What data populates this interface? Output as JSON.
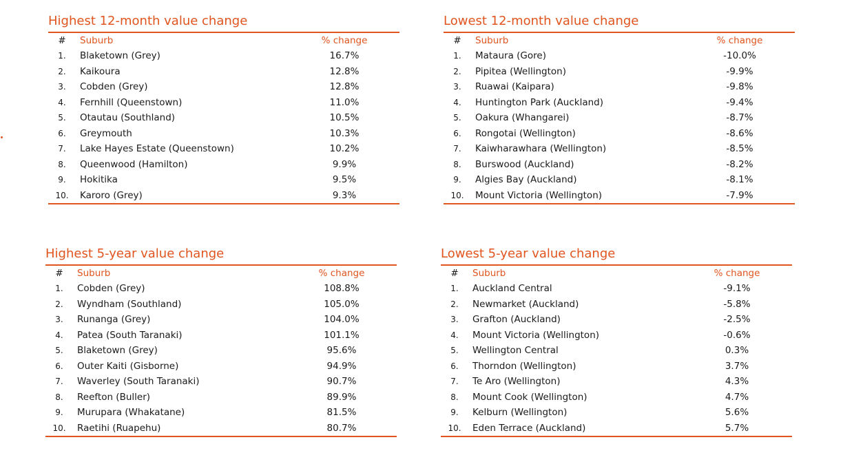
{
  "tables": [
    {
      "title": "Highest 12-month value change",
      "headers": {
        "rank": "#",
        "suburb": "Suburb",
        "change": "% change"
      },
      "rows": [
        {
          "rank": "1.",
          "suburb": "Blaketown (Grey)",
          "change": "16.7%"
        },
        {
          "rank": "2.",
          "suburb": "Kaikoura",
          "change": "12.8%"
        },
        {
          "rank": "3.",
          "suburb": "Cobden (Grey)",
          "change": "12.8%"
        },
        {
          "rank": "4.",
          "suburb": "Fernhill (Queenstown)",
          "change": "11.0%"
        },
        {
          "rank": "5.",
          "suburb": "Otautau (Southland)",
          "change": "10.5%"
        },
        {
          "rank": "6.",
          "suburb": "Greymouth",
          "change": "10.3%"
        },
        {
          "rank": "7.",
          "suburb": "Lake Hayes Estate (Queenstown)",
          "change": "10.2%"
        },
        {
          "rank": "8.",
          "suburb": "Queenwood (Hamilton)",
          "change": "9.9%"
        },
        {
          "rank": "9.",
          "suburb": "Hokitika",
          "change": "9.5%"
        },
        {
          "rank": "10.",
          "suburb": "Karoro (Grey)",
          "change": "9.3%"
        }
      ]
    },
    {
      "title": "Lowest 12-month value change",
      "headers": {
        "rank": "#",
        "suburb": "Suburb",
        "change": "% change"
      },
      "rows": [
        {
          "rank": "1.",
          "suburb": "Mataura (Gore)",
          "change": "-10.0%"
        },
        {
          "rank": "2.",
          "suburb": "Pipitea (Wellington)",
          "change": "-9.9%"
        },
        {
          "rank": "3.",
          "suburb": "Ruawai (Kaipara)",
          "change": "-9.8%"
        },
        {
          "rank": "4.",
          "suburb": "Huntington Park (Auckland)",
          "change": "-9.4%"
        },
        {
          "rank": "5.",
          "suburb": "Oakura (Whangarei)",
          "change": "-8.7%"
        },
        {
          "rank": "6.",
          "suburb": "Rongotai (Wellington)",
          "change": "-8.6%"
        },
        {
          "rank": "7.",
          "suburb": "Kaiwharawhara (Wellington)",
          "change": "-8.5%"
        },
        {
          "rank": "8.",
          "suburb": "Burswood (Auckland)",
          "change": "-8.2%"
        },
        {
          "rank": "9.",
          "suburb": "Algies Bay (Auckland)",
          "change": "-8.1%"
        },
        {
          "rank": "10.",
          "suburb": "Mount Victoria (Wellington)",
          "change": "-7.9%"
        }
      ]
    },
    {
      "title": "Highest 5-year value change",
      "headers": {
        "rank": "#",
        "suburb": "Suburb",
        "change": "% change"
      },
      "rows": [
        {
          "rank": "1.",
          "suburb": "Cobden (Grey)",
          "change": "108.8%"
        },
        {
          "rank": "2.",
          "suburb": "Wyndham (Southland)",
          "change": "105.0%"
        },
        {
          "rank": "3.",
          "suburb": "Runanga (Grey)",
          "change": "104.0%"
        },
        {
          "rank": "4.",
          "suburb": "Patea (South Taranaki)",
          "change": "101.1%"
        },
        {
          "rank": "5.",
          "suburb": "Blaketown (Grey)",
          "change": "95.6%"
        },
        {
          "rank": "6.",
          "suburb": "Outer Kaiti (Gisborne)",
          "change": "94.9%"
        },
        {
          "rank": "7.",
          "suburb": "Waverley (South Taranaki)",
          "change": "90.7%"
        },
        {
          "rank": "8.",
          "suburb": "Reefton (Buller)",
          "change": "89.9%"
        },
        {
          "rank": "9.",
          "suburb": "Murupara (Whakatane)",
          "change": "81.5%"
        },
        {
          "rank": "10.",
          "suburb": "Raetihi (Ruapehu)",
          "change": "80.7%"
        }
      ]
    },
    {
      "title": "Lowest 5-year value change",
      "headers": {
        "rank": "#",
        "suburb": "Suburb",
        "change": "% change"
      },
      "rows": [
        {
          "rank": "1.",
          "suburb": "Auckland Central",
          "change": "-9.1%"
        },
        {
          "rank": "2.",
          "suburb": "Newmarket (Auckland)",
          "change": "-5.8%"
        },
        {
          "rank": "3.",
          "suburb": "Grafton (Auckland)",
          "change": "-2.5%"
        },
        {
          "rank": "4.",
          "suburb": "Mount Victoria (Wellington)",
          "change": "-0.6%"
        },
        {
          "rank": "5.",
          "suburb": "Wellington Central",
          "change": "0.3%"
        },
        {
          "rank": "6.",
          "suburb": "Thorndon (Wellington)",
          "change": "3.7%"
        },
        {
          "rank": "7.",
          "suburb": "Te Aro (Wellington)",
          "change": "4.3%"
        },
        {
          "rank": "8.",
          "suburb": "Mount Cook (Wellington)",
          "change": "4.7%"
        },
        {
          "rank": "9.",
          "suburb": "Kelburn (Wellington)",
          "change": "5.6%"
        },
        {
          "rank": "10.",
          "suburb": "Eden Terrace (Auckland)",
          "change": "5.7%"
        }
      ]
    }
  ],
  "colors": {
    "accent": "#e0541e",
    "text": "#1a1a1a",
    "background": "#ffffff"
  }
}
